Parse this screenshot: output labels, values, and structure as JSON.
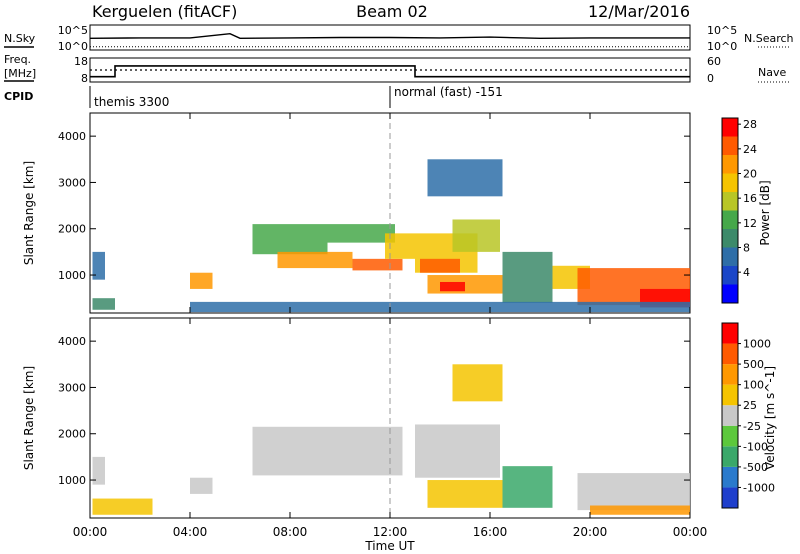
{
  "header": {
    "station": "Kerguelen (fitACF)",
    "beam": "Beam 02",
    "date": "12/Mar/2016"
  },
  "labels": {
    "nsky": "N.Sky",
    "nsearch": "N.Search",
    "freq": "Freq.",
    "mhz": "[MHz]",
    "nave": "Nave",
    "cpid": "CPID"
  },
  "noise_panel": {
    "left_ticks": [
      "10^5",
      "10^0"
    ],
    "right_ticks": [
      "10^5",
      "10^0"
    ]
  },
  "freq_panel": {
    "left_ticks": [
      "18",
      "8"
    ],
    "right_ticks": [
      "60",
      "0"
    ]
  },
  "cpid_panel": {
    "modes": [
      {
        "label": "themis 3300",
        "start_hour": 0
      },
      {
        "label": "normal (fast) -151",
        "start_hour": 12
      }
    ]
  },
  "chart_data": [
    {
      "type": "line",
      "name": "noise",
      "x_hours": [
        0,
        2,
        4,
        5.6,
        6,
        8,
        10,
        12,
        14,
        16,
        18,
        20,
        22,
        24
      ],
      "nsky_log": [
        2.3,
        2.4,
        2.4,
        3.4,
        2.3,
        2.4,
        2.5,
        2.5,
        2.4,
        2.6,
        2.3,
        2.4,
        2.4,
        2.4
      ],
      "nsearch_log": [
        0.3,
        0.3,
        0.3,
        0.3,
        0.3,
        0.3,
        0.3,
        0.3,
        0.3,
        0.3,
        0.3,
        0.3,
        0.3,
        0.3
      ]
    },
    {
      "type": "line",
      "name": "frequency-nave",
      "freq_segments": [
        [
          0,
          1,
          10.2
        ],
        [
          1,
          13,
          14.7
        ],
        [
          13,
          24,
          10.2
        ]
      ],
      "nave_segments": [
        [
          0,
          24,
          30
        ]
      ]
    },
    {
      "type": "heatmap",
      "name": "power",
      "xlabel": "Time UT",
      "ylabel": "Slant Range [km]",
      "x_ticks": [
        "00:00",
        "04:00",
        "08:00",
        "12:00",
        "16:00",
        "20:00",
        "00:00"
      ],
      "xlim_hours": [
        0,
        24
      ],
      "y_ticks": [
        1000,
        2000,
        3000,
        4000
      ],
      "ylim_km": [
        180,
        4500
      ],
      "colorbar": {
        "label": "Power [dB]",
        "ticks": [
          "4",
          "8",
          "12",
          "16",
          "20",
          "24",
          "28"
        ],
        "range": [
          0,
          30
        ],
        "colors": [
          "#0000ff",
          "#1a46c8",
          "#2e6ea8",
          "#3c8a6a",
          "#46a84a",
          "#b8c626",
          "#f5c400",
          "#ff9800",
          "#ff5a00",
          "#ff0000"
        ]
      },
      "regions": [
        {
          "h0": 0.1,
          "h1": 0.6,
          "r0": 900,
          "r1": 1500,
          "v": 8
        },
        {
          "h0": 0.1,
          "h1": 1.0,
          "r0": 250,
          "r1": 500,
          "v": 10
        },
        {
          "h0": 4.0,
          "h1": 4.9,
          "r0": 700,
          "r1": 1050,
          "v": 22
        },
        {
          "h0": 6.5,
          "h1": 9.5,
          "r0": 1450,
          "r1": 2100,
          "v": 14
        },
        {
          "h0": 7.5,
          "h1": 10.5,
          "r0": 1150,
          "r1": 1500,
          "v": 22
        },
        {
          "h0": 9.5,
          "h1": 12.2,
          "r0": 1700,
          "r1": 2100,
          "v": 14
        },
        {
          "h0": 10.5,
          "h1": 12.5,
          "r0": 1100,
          "r1": 1350,
          "v": 24
        },
        {
          "h0": 11.8,
          "h1": 13.0,
          "r0": 1350,
          "r1": 1900,
          "v": 18
        },
        {
          "h0": 13.0,
          "h1": 15.5,
          "r0": 1050,
          "r1": 1900,
          "v": 18
        },
        {
          "h0": 13.2,
          "h1": 14.8,
          "r0": 1050,
          "r1": 1350,
          "v": 26
        },
        {
          "h0": 14.5,
          "h1": 16.4,
          "r0": 1500,
          "r1": 2200,
          "v": 16
        },
        {
          "h0": 13.5,
          "h1": 16.5,
          "r0": 600,
          "r1": 1000,
          "v": 22
        },
        {
          "h0": 14.0,
          "h1": 15.0,
          "r0": 650,
          "r1": 850,
          "v": 28
        },
        {
          "h0": 16.5,
          "h1": 18.5,
          "r0": 400,
          "r1": 1500,
          "v": 10
        },
        {
          "h0": 18.5,
          "h1": 20.0,
          "r0": 700,
          "r1": 1200,
          "v": 18
        },
        {
          "h0": 19.5,
          "h1": 24.0,
          "r0": 350,
          "r1": 1150,
          "v": 26
        },
        {
          "h0": 22.0,
          "h1": 24.0,
          "r0": 300,
          "r1": 700,
          "v": 28
        },
        {
          "h0": 13.5,
          "h1": 16.5,
          "r0": 2700,
          "r1": 3500,
          "v": 6
        },
        {
          "h0": 4.0,
          "h1": 24.0,
          "r0": 200,
          "r1": 420,
          "v": 8
        }
      ]
    },
    {
      "type": "heatmap",
      "name": "velocity",
      "xlabel": "Time UT",
      "ylabel": "Slant Range [km]",
      "x_ticks": [
        "00:00",
        "04:00",
        "08:00",
        "12:00",
        "16:00",
        "20:00",
        "00:00"
      ],
      "xlim_hours": [
        0,
        24
      ],
      "y_ticks": [
        1000,
        2000,
        3000,
        4000
      ],
      "ylim_km": [
        180,
        4500
      ],
      "colorbar": {
        "label": "Velocity [m s^-1]",
        "ticks": [
          "1000",
          "500",
          "100",
          "25",
          "-25",
          "-100",
          "-500",
          "-1000"
        ],
        "colors": [
          "#1f3fcc",
          "#2a7acc",
          "#3aa86a",
          "#5cc83c",
          "#c8c8c8",
          "#f5c400",
          "#ff9800",
          "#ff5a00",
          "#ff0000"
        ]
      },
      "regions": [
        {
          "h0": 0.1,
          "h1": 0.6,
          "r0": 900,
          "r1": 1500,
          "c": 4
        },
        {
          "h0": 0.1,
          "h1": 2.5,
          "r0": 250,
          "r1": 600,
          "c": 5
        },
        {
          "h0": 4.0,
          "h1": 4.9,
          "r0": 700,
          "r1": 1050,
          "c": 4
        },
        {
          "h0": 6.5,
          "h1": 12.5,
          "r0": 1100,
          "r1": 2150,
          "c": 4
        },
        {
          "h0": 13.0,
          "h1": 16.4,
          "r0": 1050,
          "r1": 2200,
          "c": 4
        },
        {
          "h0": 13.5,
          "h1": 16.5,
          "r0": 400,
          "r1": 1000,
          "c": 5
        },
        {
          "h0": 16.5,
          "h1": 18.5,
          "r0": 400,
          "r1": 1300,
          "c": 2
        },
        {
          "h0": 19.5,
          "h1": 24.0,
          "r0": 350,
          "r1": 1150,
          "c": 4
        },
        {
          "h0": 20.0,
          "h1": 24.0,
          "r0": 250,
          "r1": 450,
          "c": 6
        },
        {
          "h0": 14.5,
          "h1": 16.5,
          "r0": 2700,
          "r1": 3500,
          "c": 5
        }
      ]
    }
  ]
}
